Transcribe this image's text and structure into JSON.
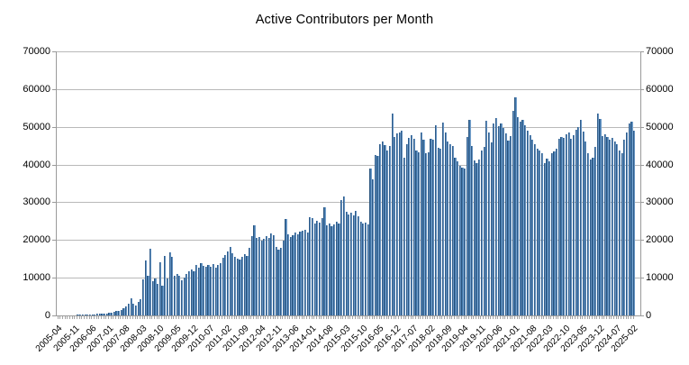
{
  "canvas": {
    "background": "#ffffff"
  },
  "chart_data": {
    "type": "bar",
    "title": "Active Contributors per Month",
    "xlabel": "",
    "ylabel": "",
    "ylim": [
      0,
      70000
    ],
    "y_ticks": [
      0,
      10000,
      20000,
      30000,
      40000,
      50000,
      60000,
      70000
    ],
    "y_axis_sides": [
      "left",
      "right"
    ],
    "grid": "horizontal",
    "legend": "none",
    "bar_color": "#3c74ab",
    "bar_border_color": "#173a5e",
    "gridline_color": "#b9b9b9",
    "axis_color": "#9a9a9a",
    "start_month": "2005-04",
    "end_month": "2025-02",
    "x_tick_interval": 7,
    "x_tick_labels": [
      "2005-04",
      "2005-11",
      "2006-06",
      "2007-01",
      "2007-08",
      "2008-03",
      "2008-10",
      "2009-05",
      "2009-12",
      "2010-07",
      "2011-02",
      "2011-09",
      "2012-04",
      "2012-11",
      "2013-06",
      "2014-01",
      "2014-08",
      "2015-03",
      "2015-10",
      "2016-05",
      "2016-12",
      "2017-07",
      "2018-02",
      "2018-09",
      "2019-04",
      "2019-11",
      "2020-06",
      "2021-01",
      "2021-08",
      "2022-03",
      "2022-10",
      "2023-05",
      "2023-12",
      "2024-07",
      "2025-02"
    ],
    "values": [
      20,
      30,
      40,
      50,
      60,
      80,
      100,
      120,
      140,
      160,
      180,
      200,
      230,
      260,
      300,
      340,
      380,
      430,
      480,
      540,
      600,
      700,
      800,
      950,
      1100,
      1300,
      1500,
      1900,
      2400,
      3200,
      4600,
      3000,
      2700,
      3600,
      4300,
      9500,
      14500,
      10500,
      17700,
      9200,
      9900,
      8400,
      14100,
      7900,
      15800,
      9800,
      16700,
      15500,
      10400,
      11000,
      10600,
      9300,
      10100,
      10900,
      11800,
      12100,
      11600,
      13400,
      12600,
      13800,
      13100,
      12800,
      13300,
      12900,
      13600,
      12700,
      13500,
      13900,
      15300,
      16100,
      17000,
      18100,
      16600,
      15500,
      15100,
      14900,
      15600,
      16200,
      15800,
      18000,
      21000,
      24000,
      20500,
      20900,
      19800,
      20300,
      21100,
      20600,
      21700,
      21200,
      18100,
      17400,
      17900,
      19900,
      25500,
      21500,
      20900,
      21300,
      22000,
      21600,
      22200,
      22500,
      22800,
      21900,
      26100,
      25900,
      24400,
      25200,
      24700,
      25800,
      28700,
      23900,
      24300,
      23700,
      24200,
      24900,
      24400,
      30700,
      31500,
      27500,
      26800,
      27300,
      26500,
      27700,
      26200,
      24900,
      24300,
      24700,
      24100,
      38900,
      36100,
      42500,
      42200,
      45500,
      46000,
      45200,
      43700,
      45000,
      53400,
      47400,
      48200,
      48500,
      48900,
      41800,
      45500,
      47100,
      47700,
      46900,
      43700,
      43300,
      48500,
      46500,
      42900,
      43300,
      46900,
      46500,
      50300,
      44500,
      44100,
      51100,
      48500,
      46100,
      45300,
      44900,
      41700,
      40900,
      39700,
      39300,
      38900,
      47300,
      51800,
      44900,
      41000,
      40300,
      41400,
      43800,
      44700,
      51600,
      48400,
      45900,
      50900,
      52400,
      50100,
      50900,
      49800,
      48300,
      46300,
      47600,
      54200,
      57900,
      52500,
      51300,
      51800,
      50300,
      48900,
      47700,
      46500,
      45500,
      44300,
      43700,
      42900,
      40400,
      41500,
      40800,
      43100,
      43600,
      44200,
      46800,
      47300,
      47000,
      48000,
      48600,
      46900,
      47800,
      49300,
      49900,
      51800,
      48800,
      46200,
      43000,
      41400,
      41900,
      44600,
      53400,
      52200,
      47600,
      48100,
      47300,
      46600,
      47000,
      46200,
      45300,
      43800,
      43000,
      46700,
      48500,
      50800,
      51300,
      48900
    ]
  }
}
